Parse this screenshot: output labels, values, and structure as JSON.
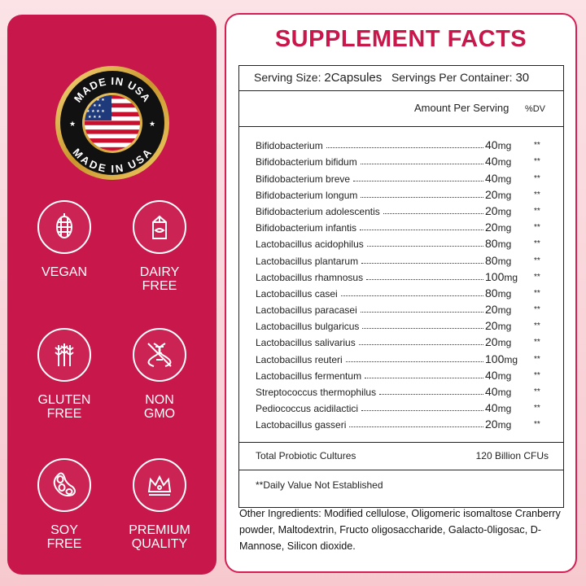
{
  "badge": {
    "top_text": "MADE IN USA",
    "bottom_text": "MADE IN USA"
  },
  "features": [
    {
      "label": "VEGAN",
      "icon": "pinecone-icon"
    },
    {
      "label": "DAIRY\nFREE",
      "icon": "milk-carton-icon"
    },
    {
      "label": "GLUTEN\nFREE",
      "icon": "wheat-icon"
    },
    {
      "label": "NON\nGMO",
      "icon": "dna-icon"
    },
    {
      "label": "SOY\nFREE",
      "icon": "soybean-icon"
    },
    {
      "label": "PREMIUM\nQUALITY",
      "icon": "crown-icon"
    }
  ],
  "facts": {
    "title": "SUPPLEMENT FACTS",
    "serving_size_label": "Serving Size:",
    "serving_size_value": "2Capsules",
    "servings_label": "Servings Per Container:",
    "servings_value": "30",
    "amount_header": "Amount Per Serving",
    "dv_header": "%DV",
    "ingredients": [
      {
        "name": "Bifidobacterium",
        "amount": "40",
        "unit": "mg",
        "dv": "**"
      },
      {
        "name": "Bifidobacterium bifidum",
        "amount": "40",
        "unit": "mg",
        "dv": "**"
      },
      {
        "name": "Bifidobacterium breve",
        "amount": "40",
        "unit": "mg",
        "dv": "**"
      },
      {
        "name": "Bifidobacterium longum",
        "amount": "20",
        "unit": "mg",
        "dv": "**"
      },
      {
        "name": "Bifidobacterium adolescentis",
        "amount": "20",
        "unit": "mg",
        "dv": "**"
      },
      {
        "name": "Bifidobacterium infantis",
        "amount": "20",
        "unit": "mg",
        "dv": "**"
      },
      {
        "name": "Lactobacillus acidophilus",
        "amount": "80",
        "unit": "mg",
        "dv": "**"
      },
      {
        "name": "Lactobacillus plantarum",
        "amount": "80",
        "unit": "mg",
        "dv": "**"
      },
      {
        "name": "Lactobacillus rhamnosus",
        "amount": "100",
        "unit": "mg",
        "dv": "**"
      },
      {
        "name": "Lactobacillus casei",
        "amount": "80",
        "unit": "mg",
        "dv": "**"
      },
      {
        "name": "Lactobacillus paracasei",
        "amount": "20",
        "unit": "mg",
        "dv": "**"
      },
      {
        "name": "Lactobacillus bulgaricus",
        "amount": "20",
        "unit": "mg",
        "dv": "**"
      },
      {
        "name": "Lactobacillus salivarius",
        "amount": "20",
        "unit": "mg",
        "dv": "**"
      },
      {
        "name": "Lactobacillus reuteri",
        "amount": "100",
        "unit": "mg",
        "dv": "**"
      },
      {
        "name": "Lactobacillus fermentum",
        "amount": "40",
        "unit": "mg",
        "dv": "**"
      },
      {
        "name": "Streptococcus thermophilus",
        "amount": "40",
        "unit": "mg",
        "dv": "**"
      },
      {
        "name": "Pediococcus acidilactici",
        "amount": "40",
        "unit": "mg",
        "dv": "**"
      },
      {
        "name": "Lactobacillus gasseri",
        "amount": "20",
        "unit": "mg",
        "dv": "**"
      }
    ],
    "total_label": "Total Probiotic Cultures",
    "total_value": "120 Billion CFUs",
    "note": "**Daily Value Not Established"
  },
  "other_ingredients": "Other Ingredients: Modified cellulose, Oligomeric isomaltose Cranberry powder, Maltodextrin, Fructo oligosaccharide, Galacto-0ligosac, D-Mannose, Silicon dioxide.",
  "colors": {
    "brand": "#c8174a",
    "badge_gold": "#d6a632"
  }
}
